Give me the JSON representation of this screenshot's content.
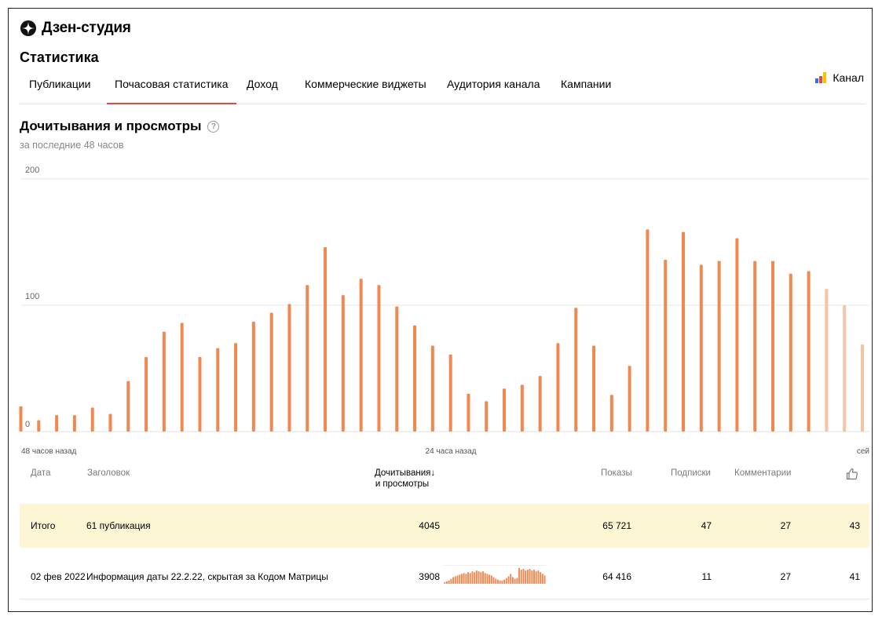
{
  "app": {
    "title": "Дзен-студия"
  },
  "page": {
    "title": "Статистика"
  },
  "tabs": [
    {
      "label": "Публикации"
    },
    {
      "label": "Почасовая статистика",
      "active": true
    },
    {
      "label": "Доход"
    },
    {
      "label": "Коммерческие виджеты"
    },
    {
      "label": "Аудитория канала"
    },
    {
      "label": "Кампании"
    }
  ],
  "channel": {
    "label": "Канал",
    "icon": "channel-bars-icon",
    "colors": [
      "#3b6be8",
      "#e8453c",
      "#f5c400"
    ]
  },
  "section": {
    "title": "Дочитывания и просмотры",
    "subtitle": "за последние 48 часов",
    "help_icon": "question-circle-icon"
  },
  "colors": {
    "accent": "#e8453c",
    "bar": "#f08850",
    "bar_light": "#f7c3a6",
    "total_row": "#fdf6d5"
  },
  "chart_data": {
    "type": "bar",
    "title": "",
    "ylabel": "",
    "xlabel": "",
    "ylim": [
      0,
      200
    ],
    "yticks": [
      "0",
      "100",
      "200"
    ],
    "x_labels": [
      "48 часов назад",
      "24 часа назад",
      "сей"
    ],
    "grid": true,
    "values": [
      20,
      9,
      13,
      13,
      19,
      14,
      40,
      59,
      79,
      86,
      59,
      66,
      70,
      87,
      94,
      101,
      116,
      146,
      108,
      121,
      116,
      99,
      84,
      68,
      61,
      30,
      24,
      34,
      37,
      44,
      70,
      98,
      68,
      29,
      52,
      160,
      136,
      158,
      132,
      135,
      153,
      135,
      135,
      125,
      127,
      113,
      100,
      69
    ],
    "light_from_index": 45
  },
  "table": {
    "headers": {
      "date": "Дата",
      "headline": "Заголовок",
      "reads_line1": "Дочитывания↓",
      "reads_line2": "и просмотры",
      "impressions": "Показы",
      "subscriptions": "Подписки",
      "comments": "Комментарии",
      "likes_icon": "thumbs-up-icon"
    },
    "total": {
      "label": "Итого",
      "headline": "61 публикация",
      "reads": "4045",
      "impressions": "65 721",
      "subscriptions": "47",
      "comments": "27",
      "likes": "43"
    },
    "rows": [
      {
        "date": "02 фев 2022",
        "headline": "Информация даты 22.2.22, скрытая за Кодом Матрицы",
        "reads": "3908",
        "impressions": "64 416",
        "subscriptions": "11",
        "comments": "27",
        "likes": "41",
        "sparkline": [
          2,
          3,
          4,
          6,
          8,
          9,
          10,
          11,
          12,
          13,
          12,
          14,
          13,
          15,
          14,
          16,
          15,
          14,
          15,
          13,
          12,
          11,
          10,
          8,
          6,
          5,
          4,
          4,
          5,
          7,
          9,
          12,
          8,
          6,
          7,
          19,
          17,
          18,
          16,
          17,
          18,
          16,
          17,
          15,
          16,
          14,
          12,
          10
        ]
      }
    ]
  }
}
